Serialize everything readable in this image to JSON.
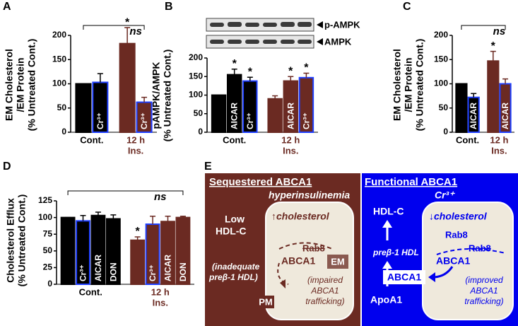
{
  "chart_data": [
    {
      "type": "bar",
      "panel": "A",
      "ylabel": [
        "EM Cholesterol",
        "/EM Protein",
        "(% Untreated Cont.)"
      ],
      "categories": [
        null,
        "Cr³⁺",
        null,
        "Cr³⁺"
      ],
      "values": [
        100,
        103,
        183,
        62
      ],
      "errors": [
        0,
        18,
        33,
        10
      ],
      "colors": [
        "#000000",
        "#000000",
        "#6b2a22",
        "#6b2a22"
      ],
      "edge_colors": [
        "#000000",
        "#1f3fff",
        "#6b2a22",
        "#1f3fff"
      ],
      "significance": [
        null,
        null,
        "*",
        null
      ],
      "groups": [
        {
          "label": [
            "Cont."
          ],
          "bars": [
            0,
            1
          ]
        },
        {
          "label": [
            "12 h",
            "Ins."
          ],
          "bars": [
            2,
            3
          ]
        }
      ],
      "bracket": "ns",
      "ylim": [
        0,
        200
      ],
      "yticks": [
        0,
        50,
        100,
        150,
        200
      ]
    },
    {
      "type": "bar",
      "panel": "B",
      "ylabel": [
        "pAMPK/AMPK",
        "(% Untreated Cont.)"
      ],
      "blot_labels": [
        "p-AMPK",
        "AMPK"
      ],
      "categories": [
        null,
        "AICAR",
        "Cr³⁺",
        null,
        "AICAR",
        "Cr³⁺"
      ],
      "values": [
        100,
        155,
        138,
        90,
        138,
        147
      ],
      "errors": [
        0,
        15,
        10,
        8,
        12,
        12
      ],
      "colors": [
        "#000000",
        "#000000",
        "#000000",
        "#6b2a22",
        "#6b2a22",
        "#6b2a22"
      ],
      "edge_colors": [
        "#000000",
        "#000000",
        "#1f3fff",
        "#6b2a22",
        "#6b2a22",
        "#1f3fff"
      ],
      "significance": [
        null,
        "*",
        "*",
        null,
        "*",
        "*"
      ],
      "groups": [
        {
          "label": [
            "Cont."
          ],
          "bars": [
            0,
            1,
            2
          ]
        },
        {
          "label": [
            "12 h",
            "Ins."
          ],
          "bars": [
            3,
            4,
            5
          ]
        }
      ],
      "ylim": [
        0,
        200
      ],
      "yticks": [
        0,
        50,
        100,
        150,
        200
      ]
    },
    {
      "type": "bar",
      "panel": "C",
      "ylabel": [
        "EM Cholesterol",
        "/EM Protein",
        "(% Untreated Cont.)"
      ],
      "categories": [
        null,
        "AICAR",
        null,
        "AICAR"
      ],
      "values": [
        100,
        72,
        147,
        100
      ],
      "errors": [
        0,
        8,
        20,
        10
      ],
      "colors": [
        "#000000",
        "#000000",
        "#6b2a22",
        "#6b2a22"
      ],
      "edge_colors": [
        "#000000",
        "#1f3fff",
        "#6b2a22",
        "#1f3fff"
      ],
      "significance": [
        null,
        null,
        "*",
        null
      ],
      "groups": [
        {
          "label": [
            "Cont."
          ],
          "bars": [
            0,
            1
          ]
        },
        {
          "label": [
            "12 h",
            "Ins."
          ],
          "bars": [
            2,
            3
          ]
        }
      ],
      "bracket": "ns",
      "ylim": [
        0,
        200
      ],
      "yticks": [
        0,
        50,
        100,
        150,
        200
      ]
    },
    {
      "type": "bar",
      "panel": "D",
      "ylabel": [
        "Cholesterol Efflux",
        "(% Untreated Cont.)"
      ],
      "categories": [
        null,
        "Cr³⁺",
        "AICAR",
        "DON",
        null,
        "Cr³⁺",
        "AICAR",
        "DON"
      ],
      "values": [
        100,
        95,
        103,
        98,
        66,
        90,
        94,
        100
      ],
      "errors": [
        0,
        8,
        5,
        6,
        5,
        12,
        8,
        2
      ],
      "colors": [
        "#000000",
        "#000000",
        "#000000",
        "#000000",
        "#6b2a22",
        "#6b2a22",
        "#6b2a22",
        "#6b2a22"
      ],
      "edge_colors": [
        "#000000",
        "#1f3fff",
        "#000000",
        "#000000",
        "#6b2a22",
        "#1f3fff",
        "#6b2a22",
        "#6b2a22"
      ],
      "significance": [
        null,
        null,
        null,
        null,
        "*",
        null,
        null,
        null
      ],
      "groups": [
        {
          "label": [
            "Cont."
          ],
          "bars": [
            0,
            1,
            2,
            3
          ]
        },
        {
          "label": [
            "12 h",
            "Ins."
          ],
          "bars": [
            4,
            5,
            6,
            7
          ]
        }
      ],
      "bracket": "ns",
      "ylim": [
        0,
        125
      ],
      "yticks": [
        0,
        25,
        50,
        75,
        100,
        125
      ]
    }
  ],
  "diagram": {
    "panel": "E",
    "left": {
      "title": "Sequestered ABCA1",
      "subtitle": "hyperinsulinemia",
      "outcome": [
        "Low",
        "HDL-C"
      ],
      "cell_state": "↑cholesterol",
      "rab": "Rab8",
      "transporter": "ABCA1",
      "compartment": "EM",
      "note": [
        "(inadequate",
        "preβ-1 HDL)"
      ],
      "trafficking": [
        "(impaired",
        "ABCA1",
        "trafficking)"
      ],
      "membrane": "PM"
    },
    "right": {
      "title": "Functional ABCA1",
      "subtitle": "Cr³⁺",
      "outcome": "HDL-C",
      "acceptor": "preβ-1 HDL",
      "donor": "ApoA1",
      "cell_state": "↓cholesterol",
      "rab_active": "Rab8",
      "rab_inactive": "Rab8",
      "transporter_inner": "ABCA1",
      "transporter_membrane": "ABCA1",
      "trafficking": [
        "(improved",
        "ABCA1",
        "trafficking)"
      ]
    }
  }
}
